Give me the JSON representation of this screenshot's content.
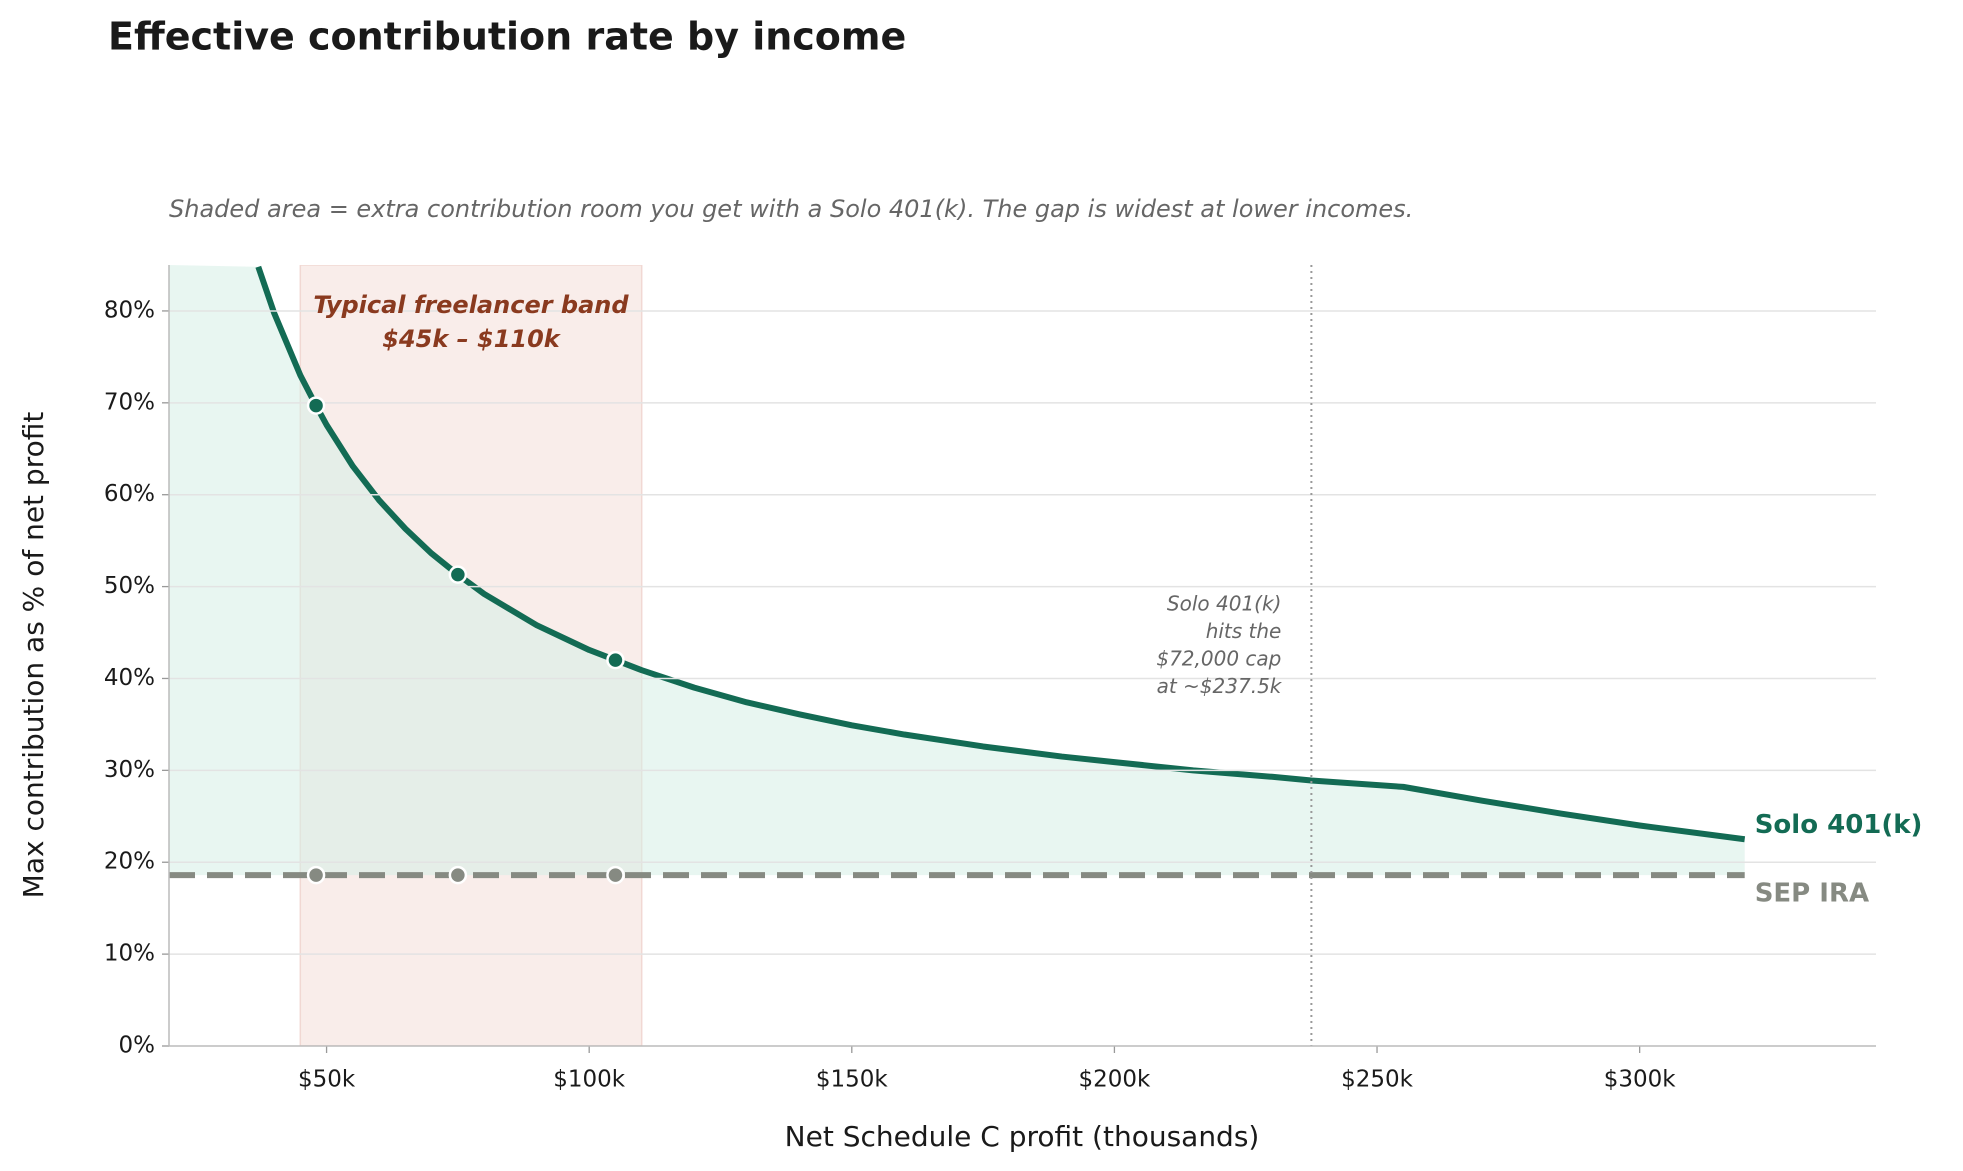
{
  "chart_data": {
    "type": "line",
    "title": "Effective contribution rate by income",
    "subtitle": "Shaded area = extra contribution room you get with a Solo 401(k). The gap is widest at lower incomes.",
    "x_label": "Net Schedule C profit (thousands)",
    "y_label": "Max contribution as % of net profit",
    "series": [
      {
        "name": "Solo 401(k)",
        "color": "#136b54",
        "x": [
          37,
          40,
          45,
          48,
          50,
          55,
          60,
          65,
          70,
          75,
          80,
          90,
          100,
          105,
          110,
          120,
          130,
          140,
          150,
          160,
          175,
          190,
          200,
          215,
          230,
          237.5,
          255,
          270,
          285,
          300,
          320
        ],
        "values": [
          84.8,
          79.8,
          73.0,
          69.7,
          67.6,
          63.1,
          59.4,
          56.3,
          53.6,
          51.3,
          49.2,
          45.8,
          43.1,
          42.0,
          40.9,
          39.0,
          37.4,
          36.1,
          34.9,
          33.9,
          32.6,
          31.5,
          30.9,
          30.0,
          29.3,
          28.9,
          28.2,
          26.7,
          25.3,
          24.0,
          22.5
        ]
      },
      {
        "name": "SEP IRA",
        "color": "#868a82",
        "dashed": true,
        "x": [
          20,
          48,
          75,
          105,
          320
        ],
        "values": [
          18.6,
          18.6,
          18.6,
          18.6,
          18.6
        ]
      }
    ],
    "highlight_x": [
      48,
      75,
      105
    ],
    "band": {
      "range": [
        45,
        110
      ],
      "label": [
        "Typical freelancer band",
        "$45k – $110k"
      ],
      "color": "#f9ece8",
      "label_color": "#8a3a1f"
    },
    "vline": {
      "x": 237.5,
      "label": [
        "Solo 401(k)",
        "hits the",
        "$72,000 cap",
        "at ~$237.5k"
      ]
    },
    "xlim": [
      20,
      345
    ],
    "ylim": [
      0,
      85
    ],
    "xticks": [
      {
        "value": 50,
        "label": "$50k"
      },
      {
        "value": 100,
        "label": "$100k"
      },
      {
        "value": 150,
        "label": "$150k"
      },
      {
        "value": 200,
        "label": "$200k"
      },
      {
        "value": 250,
        "label": "$250k"
      },
      {
        "value": 300,
        "label": "$300k"
      }
    ],
    "yticks": [
      {
        "value": 0,
        "label": "0%"
      },
      {
        "value": 10,
        "label": "10%"
      },
      {
        "value": 20,
        "label": "20%"
      },
      {
        "value": 30,
        "label": "30%"
      },
      {
        "value": 40,
        "label": "40%"
      },
      {
        "value": 50,
        "label": "50%"
      },
      {
        "value": 60,
        "label": "60%"
      },
      {
        "value": 70,
        "label": "70%"
      },
      {
        "value": 80,
        "label": "80%"
      }
    ],
    "grid": true,
    "fill_between": true
  }
}
